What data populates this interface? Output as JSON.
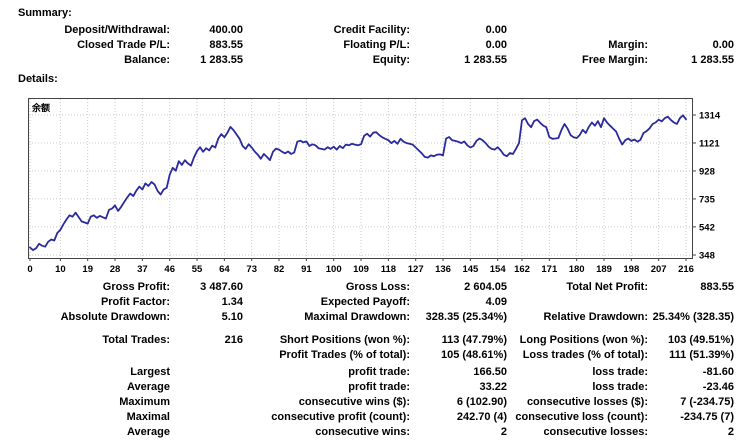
{
  "summary": {
    "heading": "Summary:",
    "rows": [
      [
        "Deposit/Withdrawal:",
        "400.00",
        "Credit Facility:",
        "0.00",
        "",
        ""
      ],
      [
        "Closed Trade P/L:",
        "883.55",
        "Floating P/L:",
        "0.00",
        "Margin:",
        "0.00"
      ],
      [
        "Balance:",
        "1 283.55",
        "Equity:",
        "1 283.55",
        "Free Margin:",
        "1 283.55"
      ]
    ]
  },
  "details": {
    "heading": "Details:"
  },
  "chart_data": {
    "type": "line",
    "title": "余额",
    "xlabel": "",
    "ylabel": "",
    "legend_position": "none",
    "grid": true,
    "x_ticks": [
      0,
      10,
      19,
      28,
      37,
      46,
      55,
      64,
      73,
      82,
      91,
      100,
      109,
      118,
      127,
      136,
      145,
      154,
      162,
      171,
      180,
      189,
      198,
      207,
      216
    ],
    "y_ticks": [
      1314,
      1121,
      928,
      735,
      542,
      348
    ],
    "xlim": [
      0,
      216
    ],
    "ylim": [
      348,
      1314
    ],
    "line_color": "#2a2a9e",
    "grid_color": "#c9c9c9",
    "border_color": "#444444",
    "points": [
      [
        0,
        400
      ],
      [
        1,
        382
      ],
      [
        2,
        395
      ],
      [
        3,
        425
      ],
      [
        4,
        412
      ],
      [
        5,
        405
      ],
      [
        6,
        440
      ],
      [
        7,
        455
      ],
      [
        8,
        448
      ],
      [
        9,
        500
      ],
      [
        10,
        522
      ],
      [
        11,
        560
      ],
      [
        12,
        592
      ],
      [
        13,
        622
      ],
      [
        14,
        612
      ],
      [
        15,
        640
      ],
      [
        16,
        610
      ],
      [
        17,
        580
      ],
      [
        18,
        572
      ],
      [
        19,
        565
      ],
      [
        20,
        612
      ],
      [
        21,
        622
      ],
      [
        22,
        605
      ],
      [
        23,
        618
      ],
      [
        24,
        608
      ],
      [
        25,
        600
      ],
      [
        26,
        660
      ],
      [
        27,
        668
      ],
      [
        28,
        690
      ],
      [
        29,
        652
      ],
      [
        30,
        680
      ],
      [
        31,
        712
      ],
      [
        32,
        745
      ],
      [
        33,
        772
      ],
      [
        34,
        755
      ],
      [
        35,
        792
      ],
      [
        36,
        820
      ],
      [
        37,
        800
      ],
      [
        38,
        842
      ],
      [
        39,
        825
      ],
      [
        40,
        852
      ],
      [
        41,
        835
      ],
      [
        42,
        790
      ],
      [
        43,
        765
      ],
      [
        44,
        800
      ],
      [
        45,
        812
      ],
      [
        46,
        902
      ],
      [
        47,
        950
      ],
      [
        48,
        930
      ],
      [
        49,
        995
      ],
      [
        50,
        970
      ],
      [
        51,
        1002
      ],
      [
        52,
        980
      ],
      [
        53,
        965
      ],
      [
        54,
        1022
      ],
      [
        55,
        1065
      ],
      [
        56,
        1092
      ],
      [
        57,
        1060
      ],
      [
        58,
        1085
      ],
      [
        59,
        1070
      ],
      [
        60,
        1102
      ],
      [
        61,
        1090
      ],
      [
        62,
        1152
      ],
      [
        63,
        1182
      ],
      [
        64,
        1160
      ],
      [
        65,
        1192
      ],
      [
        66,
        1232
      ],
      [
        67,
        1210
      ],
      [
        68,
        1180
      ],
      [
        69,
        1150
      ],
      [
        70,
        1100
      ],
      [
        71,
        1080
      ],
      [
        72,
        1112
      ],
      [
        73,
        1090
      ],
      [
        74,
        1062
      ],
      [
        75,
        1040
      ],
      [
        76,
        1012
      ],
      [
        77,
        1045
      ],
      [
        78,
        1025
      ],
      [
        79,
        1002
      ],
      [
        80,
        1060
      ],
      [
        81,
        1082
      ],
      [
        82,
        1075
      ],
      [
        83,
        1060
      ],
      [
        84,
        1050
      ],
      [
        85,
        1062
      ],
      [
        86,
        1045
      ],
      [
        87,
        1055
      ],
      [
        88,
        1130
      ],
      [
        89,
        1137
      ],
      [
        90,
        1125
      ],
      [
        91,
        1132
      ],
      [
        92,
        1100
      ],
      [
        93,
        1112
      ],
      [
        94,
        1105
      ],
      [
        95,
        1085
      ],
      [
        96,
        1080
      ],
      [
        97,
        1075
      ],
      [
        98,
        1092
      ],
      [
        99,
        1080
      ],
      [
        100,
        1095
      ],
      [
        101,
        1075
      ],
      [
        102,
        1100
      ],
      [
        103,
        1085
      ],
      [
        104,
        1110
      ],
      [
        105,
        1105
      ],
      [
        106,
        1115
      ],
      [
        107,
        1110
      ],
      [
        108,
        1105
      ],
      [
        109,
        1112
      ],
      [
        110,
        1170
      ],
      [
        111,
        1185
      ],
      [
        112,
        1165
      ],
      [
        113,
        1192
      ],
      [
        114,
        1195
      ],
      [
        115,
        1175
      ],
      [
        116,
        1160
      ],
      [
        117,
        1150
      ],
      [
        118,
        1140
      ],
      [
        119,
        1120
      ],
      [
        120,
        1135
      ],
      [
        121,
        1115
      ],
      [
        122,
        1150
      ],
      [
        123,
        1130
      ],
      [
        124,
        1120
      ],
      [
        125,
        1115
      ],
      [
        126,
        1110
      ],
      [
        127,
        1090
      ],
      [
        128,
        1070
      ],
      [
        129,
        1050
      ],
      [
        130,
        1025
      ],
      [
        131,
        1020
      ],
      [
        132,
        1035
      ],
      [
        133,
        1030
      ],
      [
        134,
        1040
      ],
      [
        135,
        1042
      ],
      [
        136,
        1035
      ],
      [
        137,
        1152
      ],
      [
        138,
        1162
      ],
      [
        139,
        1140
      ],
      [
        140,
        1135
      ],
      [
        141,
        1130
      ],
      [
        142,
        1120
      ],
      [
        143,
        1132
      ],
      [
        144,
        1105
      ],
      [
        145,
        1090
      ],
      [
        146,
        1100
      ],
      [
        147,
        1135
      ],
      [
        148,
        1152
      ],
      [
        149,
        1140
      ],
      [
        150,
        1120
      ],
      [
        151,
        1095
      ],
      [
        152,
        1080
      ],
      [
        153,
        1075
      ],
      [
        154,
        1092
      ],
      [
        155,
        1070
      ],
      [
        156,
        1040
      ],
      [
        157,
        1030
      ],
      [
        158,
        1052
      ],
      [
        159,
        1045
      ],
      [
        160,
        1080
      ],
      [
        161,
        1120
      ],
      [
        162,
        1278
      ],
      [
        163,
        1292
      ],
      [
        164,
        1252
      ],
      [
        165,
        1230
      ],
      [
        166,
        1272
      ],
      [
        167,
        1282
      ],
      [
        168,
        1260
      ],
      [
        169,
        1240
      ],
      [
        170,
        1230
      ],
      [
        171,
        1162
      ],
      [
        172,
        1150
      ],
      [
        173,
        1152
      ],
      [
        174,
        1155
      ],
      [
        175,
        1212
      ],
      [
        176,
        1252
      ],
      [
        177,
        1220
      ],
      [
        178,
        1175
      ],
      [
        179,
        1160
      ],
      [
        180,
        1155
      ],
      [
        181,
        1175
      ],
      [
        182,
        1212
      ],
      [
        183,
        1190
      ],
      [
        184,
        1232
      ],
      [
        185,
        1262
      ],
      [
        186,
        1240
      ],
      [
        187,
        1272
      ],
      [
        188,
        1230
      ],
      [
        189,
        1292
      ],
      [
        190,
        1262
      ],
      [
        191,
        1240
      ],
      [
        192,
        1220
      ],
      [
        193,
        1200
      ],
      [
        194,
        1150
      ],
      [
        195,
        1110
      ],
      [
        196,
        1140
      ],
      [
        197,
        1152
      ],
      [
        198,
        1135
      ],
      [
        199,
        1145
      ],
      [
        200,
        1130
      ],
      [
        201,
        1142
      ],
      [
        202,
        1190
      ],
      [
        203,
        1202
      ],
      [
        204,
        1222
      ],
      [
        205,
        1252
      ],
      [
        206,
        1262
      ],
      [
        207,
        1282
      ],
      [
        208,
        1270
      ],
      [
        209,
        1292
      ],
      [
        210,
        1302
      ],
      [
        211,
        1280
      ],
      [
        212,
        1262
      ],
      [
        213,
        1252
      ],
      [
        214,
        1292
      ],
      [
        215,
        1312
      ],
      [
        216,
        1284
      ]
    ]
  },
  "stats": {
    "block_a": [
      [
        "Gross Profit:",
        "3 487.60",
        "Gross Loss:",
        "2 604.05",
        "Total Net Profit:",
        "883.55"
      ],
      [
        "Profit Factor:",
        "1.34",
        "Expected Payoff:",
        "4.09",
        "",
        ""
      ],
      [
        "Absolute Drawdown:",
        "5.10",
        "Maximal Drawdown:",
        "328.35 (25.34%)",
        "Relative Drawdown:",
        "25.34% (328.35)"
      ]
    ],
    "block_b": [
      [
        "Total Trades:",
        "216",
        "Short Positions (won %):",
        "113 (47.79%)",
        "Long Positions (won %):",
        "103 (49.51%)"
      ],
      [
        "",
        "",
        "Profit Trades (% of total):",
        "105 (48.61%)",
        "Loss trades (% of total):",
        "111 (51.39%)"
      ]
    ],
    "block_c": [
      [
        "Largest",
        "",
        "profit trade:",
        "166.50",
        "loss trade:",
        "-81.60"
      ],
      [
        "Average",
        "",
        "profit trade:",
        "33.22",
        "loss trade:",
        "-23.46"
      ],
      [
        "Maximum",
        "",
        "consecutive wins ($):",
        "6 (102.90)",
        "consecutive losses ($):",
        "7 (-234.75)"
      ],
      [
        "Maximal",
        "",
        "consecutive profit (count):",
        "242.70 (4)",
        "consecutive loss (count):",
        "-234.75 (7)"
      ],
      [
        "Average",
        "",
        "consecutive wins:",
        "2",
        "consecutive losses:",
        "2"
      ]
    ]
  }
}
